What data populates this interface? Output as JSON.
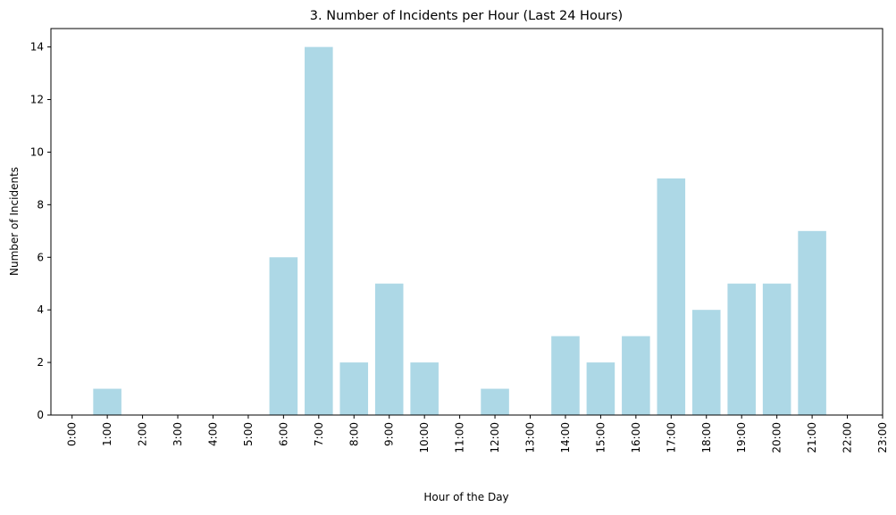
{
  "chart_data": {
    "type": "bar",
    "title": "3. Number of Incidents per Hour (Last 24 Hours)",
    "xlabel": "Hour of the Day",
    "ylabel": "Number of Incidents",
    "categories": [
      "0:00",
      "1:00",
      "2:00",
      "3:00",
      "4:00",
      "5:00",
      "6:00",
      "7:00",
      "8:00",
      "9:00",
      "10:00",
      "11:00",
      "12:00",
      "13:00",
      "14:00",
      "15:00",
      "16:00",
      "17:00",
      "18:00",
      "19:00",
      "20:00",
      "21:00",
      "22:00",
      "23:00"
    ],
    "values": [
      0,
      1,
      0,
      0,
      0,
      0,
      6,
      14,
      2,
      5,
      2,
      0,
      1,
      0,
      3,
      2,
      3,
      9,
      4,
      5,
      5,
      7,
      0,
      0
    ],
    "xlim": [
      -0.6,
      23.0
    ],
    "ylim": [
      0,
      14.7
    ],
    "yticks": [
      0,
      2,
      4,
      6,
      8,
      10,
      12,
      14
    ],
    "bar_color": "#add8e6",
    "grid": false,
    "legend": "none"
  }
}
